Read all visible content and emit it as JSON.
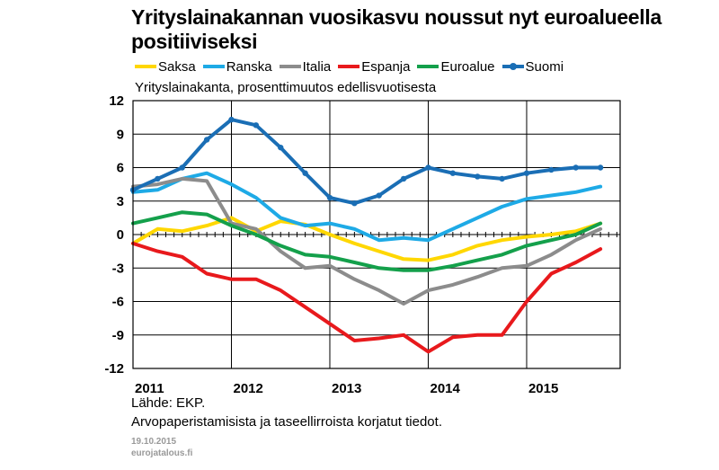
{
  "title": "Yrityslainakannan vuosikasvu noussut nyt euroalueella positiiviseksi",
  "source": "Lähde: EKP.",
  "note": "Arvopaperistamisista ja taseellirroista korjatut tiedot.",
  "date": "19.10.2015",
  "site": "eurojatalous.fi",
  "chart_data": {
    "type": "line",
    "subtitle": "Yrityslainakanta, prosenttimuutos edellisvuotisesta",
    "ylim": [
      -12,
      12
    ],
    "yticks": [
      "12",
      "9",
      "6",
      "3",
      "0",
      "-3",
      "-6",
      "-9",
      "-12"
    ],
    "xlim": [
      2011.0,
      2015.95
    ],
    "xticks": [
      {
        "label": "2011",
        "x": 2011.0
      },
      {
        "label": "2012",
        "x": 2012.0
      },
      {
        "label": "2013",
        "x": 2013.0
      },
      {
        "label": "2014",
        "x": 2014.0
      },
      {
        "label": "2015",
        "x": 2015.0
      }
    ],
    "grid": true,
    "legend_position": "top",
    "series": [
      {
        "name": "Saksa",
        "color": "#FFD700",
        "marker": false,
        "x": [
          2011.0,
          2011.25,
          2011.5,
          2011.75,
          2012.0,
          2012.25,
          2012.5,
          2012.75,
          2013.0,
          2013.25,
          2013.5,
          2013.75,
          2014.0,
          2014.25,
          2014.5,
          2014.75,
          2015.0,
          2015.25,
          2015.5,
          2015.75
        ],
        "y": [
          -0.8,
          0.5,
          0.3,
          0.8,
          1.5,
          0.3,
          1.2,
          0.9,
          0.0,
          -0.8,
          -1.5,
          -2.2,
          -2.3,
          -1.8,
          -1.0,
          -0.5,
          -0.2,
          0.0,
          0.3,
          1.0
        ]
      },
      {
        "name": "Ranska",
        "color": "#1EAAE6",
        "marker": false,
        "x": [
          2011.0,
          2011.25,
          2011.5,
          2011.75,
          2012.0,
          2012.25,
          2012.5,
          2012.75,
          2013.0,
          2013.25,
          2013.5,
          2013.75,
          2014.0,
          2014.25,
          2014.5,
          2014.75,
          2015.0,
          2015.25,
          2015.5,
          2015.75
        ],
        "y": [
          3.8,
          4.0,
          5.0,
          5.5,
          4.5,
          3.3,
          1.5,
          0.8,
          1.0,
          0.5,
          -0.5,
          -0.3,
          -0.5,
          0.5,
          1.5,
          2.5,
          3.2,
          3.5,
          3.8,
          4.3
        ]
      },
      {
        "name": "Italia",
        "color": "#8C8C8C",
        "marker": false,
        "x": [
          2011.0,
          2011.25,
          2011.5,
          2011.75,
          2012.0,
          2012.25,
          2012.5,
          2012.75,
          2013.0,
          2013.25,
          2013.5,
          2013.75,
          2014.0,
          2014.25,
          2014.5,
          2014.75,
          2015.0,
          2015.25,
          2015.5,
          2015.75
        ],
        "y": [
          4.3,
          4.5,
          5.0,
          4.8,
          1.0,
          0.5,
          -1.5,
          -3.0,
          -2.8,
          -4.0,
          -5.0,
          -6.2,
          -5.0,
          -4.5,
          -3.8,
          -3.0,
          -2.8,
          -1.8,
          -0.5,
          0.5
        ]
      },
      {
        "name": "Espanja",
        "color": "#E8191C",
        "marker": false,
        "x": [
          2011.0,
          2011.25,
          2011.5,
          2011.75,
          2012.0,
          2012.25,
          2012.5,
          2012.75,
          2013.0,
          2013.25,
          2013.5,
          2013.75,
          2014.0,
          2014.25,
          2014.5,
          2014.75,
          2015.0,
          2015.25,
          2015.5,
          2015.75
        ],
        "y": [
          -0.8,
          -1.5,
          -2.0,
          -3.5,
          -4.0,
          -4.0,
          -5.0,
          -6.5,
          -8.0,
          -9.5,
          -9.3,
          -9.0,
          -10.5,
          -9.2,
          -9.0,
          -9.0,
          -6.0,
          -3.5,
          -2.5,
          -1.3
        ]
      },
      {
        "name": "Euroalue",
        "color": "#14A04B",
        "marker": false,
        "x": [
          2011.0,
          2011.25,
          2011.5,
          2011.75,
          2012.0,
          2012.25,
          2012.5,
          2012.75,
          2013.0,
          2013.25,
          2013.5,
          2013.75,
          2014.0,
          2014.25,
          2014.5,
          2014.75,
          2015.0,
          2015.25,
          2015.5,
          2015.75
        ],
        "y": [
          1.0,
          1.5,
          2.0,
          1.8,
          0.8,
          0.0,
          -1.0,
          -1.8,
          -2.0,
          -2.5,
          -3.0,
          -3.2,
          -3.2,
          -2.8,
          -2.3,
          -1.8,
          -1.0,
          -0.5,
          0.0,
          1.0
        ]
      },
      {
        "name": "Suomi",
        "color": "#1A6EB5",
        "marker": true,
        "x": [
          2011.0,
          2011.25,
          2011.5,
          2011.75,
          2012.0,
          2012.25,
          2012.5,
          2012.75,
          2013.0,
          2013.25,
          2013.5,
          2013.75,
          2014.0,
          2014.25,
          2014.5,
          2014.75,
          2015.0,
          2015.25,
          2015.5,
          2015.75
        ],
        "y": [
          4.0,
          5.0,
          6.0,
          8.5,
          10.3,
          9.8,
          7.8,
          5.5,
          3.3,
          2.8,
          3.5,
          5.0,
          6.0,
          5.5,
          5.2,
          5.0,
          5.5,
          5.8,
          6.0,
          6.0
        ]
      }
    ]
  }
}
